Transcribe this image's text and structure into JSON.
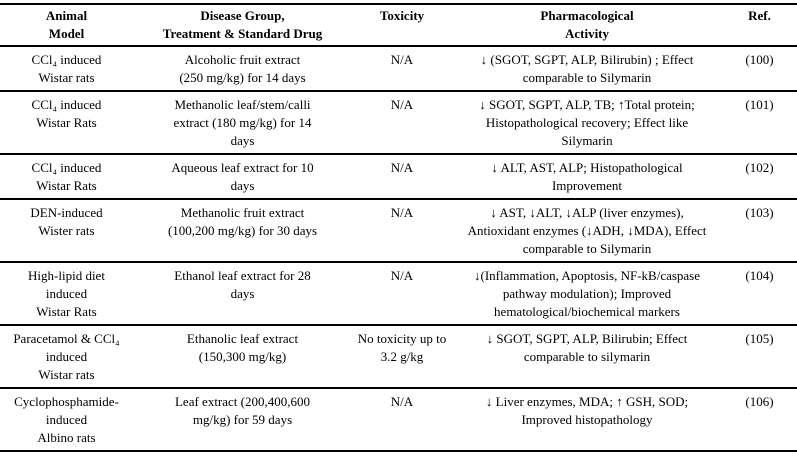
{
  "table": {
    "columns": {
      "animal_model": "Animal\nModel",
      "treatment": "Disease Group,\nTreatment & Standard Drug",
      "toxicity": "Toxicity",
      "activity": "Pharmacological\nActivity",
      "ref": "Ref."
    },
    "rows": [
      {
        "animal_model": "CCl₄ induced\nWistar rats",
        "treatment": "Alcoholic fruit extract\n(250 mg/kg) for 14 days",
        "toxicity": "N/A",
        "activity": "↓ (SGOT, SGPT, ALP, Bilirubin) ; Effect\ncomparable to Silymarin",
        "ref": "(100)"
      },
      {
        "animal_model": "CCl₄ induced\nWistar Rats",
        "treatment": "Methanolic leaf/stem/calli\nextract (180 mg/kg) for 14\ndays",
        "toxicity": "N/A",
        "activity": "↓ SGOT, SGPT, ALP, TB; ↑Total protein;\nHistopathological recovery; Effect like\nSilymarin",
        "ref": "(101)"
      },
      {
        "animal_model": "CCl₄ induced\nWistar Rats",
        "treatment": "Aqueous leaf extract for 10\ndays",
        "toxicity": "N/A",
        "activity": "↓ ALT, AST, ALP; Histopathological\nImprovement",
        "ref": "(102)"
      },
      {
        "animal_model": "DEN-induced\nWister rats",
        "treatment": "Methanolic fruit extract\n(100,200 mg/kg) for 30 days",
        "toxicity": "N/A",
        "activity": "↓ AST, ↓ALT, ↓ALP (liver enzymes),\nAntioxidant enzymes (↓ADH, ↓MDA), Effect\ncomparable to Silymarin",
        "ref": "(103)"
      },
      {
        "animal_model": "High-lipid diet\ninduced\nWistar Rats",
        "treatment": "Ethanol leaf extract for 28\ndays",
        "toxicity": "N/A",
        "activity": "↓(Inflammation, Apoptosis, NF-kB/caspase\npathway modulation); Improved\nhematological/biochemical markers",
        "ref": "(104)"
      },
      {
        "animal_model": "Paracetamol & CCl₄\ninduced\nWistar rats",
        "treatment": "Ethanolic leaf extract\n(150,300 mg/kg)",
        "toxicity": "No toxicity up to\n3.2 g/kg",
        "activity": "↓ SGOT, SGPT, ALP, Bilirubin; Effect\ncomparable to silymarin",
        "ref": "(105)"
      },
      {
        "animal_model": "Cyclophosphamide-\ninduced\nAlbino rats",
        "treatment": "Leaf extract (200,400,600\nmg/kg) for 59 days",
        "toxicity": "N/A",
        "activity": "↓ Liver enzymes, MDA; ↑ GSH, SOD;\nImproved histopathology",
        "ref": "(106)"
      }
    ]
  }
}
